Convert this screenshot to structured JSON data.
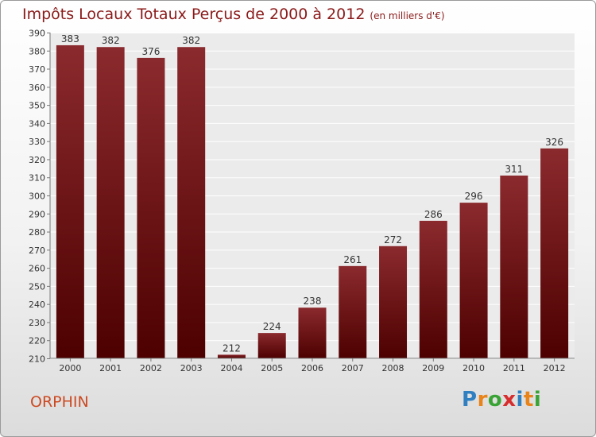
{
  "title": "Impôts Locaux Totaux Perçus de 2000 à 2012",
  "subtitle": "(en milliers d'€)",
  "place_name": "ORPHIN",
  "logo": {
    "text": "Proxiti",
    "letters": [
      "P",
      "r",
      "o",
      "x",
      "i",
      "t",
      "i"
    ],
    "colors": [
      "#2f7fc1",
      "#e8841a",
      "#3aa335",
      "#d62d2d",
      "#2f7fc1",
      "#e8841a",
      "#3aa335"
    ]
  },
  "colors": {
    "bar_top": "#8b2a2e",
    "bar_bottom": "#4d0000",
    "title": "#8b1a1a",
    "place": "#cc4a22"
  },
  "chart_data": {
    "type": "bar",
    "categories": [
      "2000",
      "2001",
      "2002",
      "2003",
      "2004",
      "2005",
      "2006",
      "2007",
      "2008",
      "2009",
      "2010",
      "2011",
      "2012"
    ],
    "values": [
      383,
      382,
      376,
      382,
      212,
      224,
      238,
      261,
      272,
      286,
      296,
      311,
      326
    ],
    "title": "Impôts Locaux Totaux Perçus de 2000 à 2012",
    "xlabel": "",
    "ylabel": "",
    "ylim": [
      210,
      390
    ],
    "yticks": [
      210,
      220,
      230,
      240,
      250,
      260,
      270,
      280,
      290,
      300,
      310,
      320,
      330,
      340,
      350,
      360,
      370,
      380,
      390
    ],
    "grid": true,
    "data_labels": true
  }
}
